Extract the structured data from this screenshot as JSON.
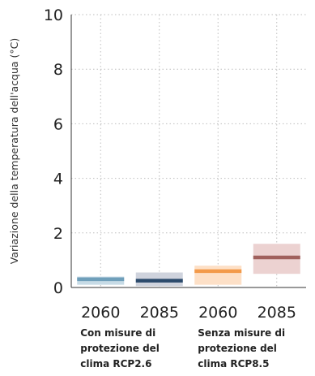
{
  "chart_data": {
    "type": "bar",
    "ylabel": "Variazione della temperatura dell'acqua (°C)",
    "xlabel": "",
    "ylim": [
      0,
      10
    ],
    "yticks": [
      "0",
      "2",
      "4",
      "6",
      "8",
      "10"
    ],
    "grid": true,
    "categories": [
      "2060",
      "2085",
      "2060",
      "2085"
    ],
    "groups": [
      {
        "label_lines": [
          "Con misure di",
          "protezione del",
          "clima RCP2.6"
        ],
        "categories": [
          0,
          1
        ]
      },
      {
        "label_lines": [
          "Senza misure di",
          "protezione del",
          "clima RCP8.5"
        ],
        "categories": [
          2,
          3
        ]
      }
    ],
    "series": [
      {
        "median": [
          0.3,
          0.25,
          0.6,
          1.1
        ],
        "low": [
          0.1,
          0.05,
          0.1,
          0.5
        ],
        "high": [
          0.4,
          0.55,
          0.8,
          1.6
        ],
        "line_colors": [
          "#6f9fba",
          "#2b4a6b",
          "#f39a4a",
          "#a0605c"
        ],
        "band_colors": [
          "#c7dbe6",
          "#cfd3dd",
          "#fde0c7",
          "#ecd2d1"
        ]
      }
    ]
  }
}
